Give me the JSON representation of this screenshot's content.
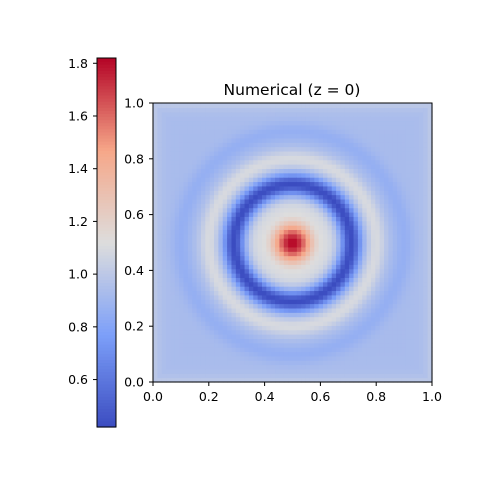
{
  "chart_data": {
    "type": "heatmap",
    "title": "Numerical (z = 0)",
    "xlabel": "",
    "ylabel": "",
    "xlim": [
      0.0,
      1.0
    ],
    "ylim": [
      0.0,
      1.0
    ],
    "x_ticks": [
      "0.0",
      "0.2",
      "0.4",
      "0.6",
      "0.8",
      "1.0"
    ],
    "y_ticks": [
      "0.0",
      "0.2",
      "0.4",
      "0.6",
      "0.8",
      "1.0"
    ],
    "grid": false,
    "colormap": "coolwarm",
    "grid_resolution": 64,
    "field": {
      "description_source": "radially symmetric rings centered at (0.5, 0.5)",
      "center": [
        0.5,
        0.5
      ],
      "value_at_center": 1.82,
      "background_value": 0.93,
      "ring_radii": [
        0.13,
        0.21,
        0.3,
        0.4
      ],
      "ring_values": [
        1.05,
        0.42,
        1.1,
        0.86
      ],
      "edge_value": 1.05
    },
    "colorbar": {
      "range": [
        0.42,
        1.82
      ],
      "ticks": [
        "0.6",
        "0.8",
        "1.0",
        "1.2",
        "1.4",
        "1.6",
        "1.8"
      ],
      "tick_values": [
        0.6,
        0.8,
        1.0,
        1.2,
        1.4,
        1.6,
        1.8
      ]
    }
  }
}
